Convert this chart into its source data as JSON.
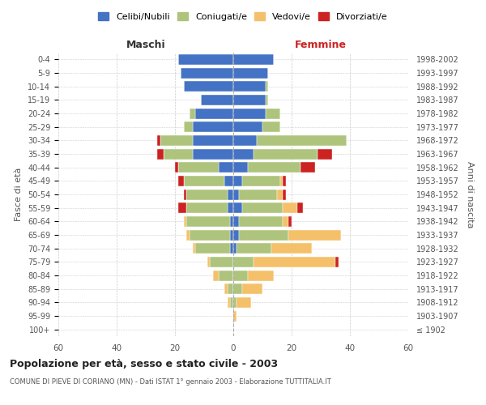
{
  "age_groups": [
    "100+",
    "95-99",
    "90-94",
    "85-89",
    "80-84",
    "75-79",
    "70-74",
    "65-69",
    "60-64",
    "55-59",
    "50-54",
    "45-49",
    "40-44",
    "35-39",
    "30-34",
    "25-29",
    "20-24",
    "15-19",
    "10-14",
    "5-9",
    "0-4"
  ],
  "birth_years": [
    "≤ 1902",
    "1903-1907",
    "1908-1912",
    "1913-1917",
    "1918-1922",
    "1923-1927",
    "1928-1932",
    "1933-1937",
    "1938-1942",
    "1943-1947",
    "1948-1952",
    "1953-1957",
    "1958-1962",
    "1963-1967",
    "1968-1972",
    "1973-1977",
    "1978-1982",
    "1983-1987",
    "1988-1992",
    "1993-1997",
    "1998-2002"
  ],
  "maschi": {
    "celibi": [
      0,
      0,
      0,
      0,
      0,
      0,
      1,
      1,
      1,
      2,
      2,
      3,
      5,
      14,
      14,
      14,
      13,
      11,
      17,
      18,
      19
    ],
    "coniugati": [
      0,
      0,
      1,
      2,
      5,
      8,
      12,
      14,
      15,
      14,
      14,
      14,
      14,
      10,
      11,
      3,
      2,
      0,
      0,
      0,
      0
    ],
    "vedovi": [
      0,
      0,
      1,
      1,
      2,
      1,
      1,
      1,
      1,
      0,
      0,
      0,
      0,
      0,
      0,
      0,
      0,
      0,
      0,
      0,
      0
    ],
    "divorziati": [
      0,
      0,
      0,
      0,
      0,
      0,
      0,
      0,
      0,
      3,
      1,
      2,
      1,
      2,
      1,
      0,
      0,
      0,
      0,
      0,
      0
    ]
  },
  "femmine": {
    "nubili": [
      0,
      0,
      0,
      0,
      0,
      0,
      1,
      2,
      2,
      3,
      2,
      3,
      5,
      7,
      8,
      10,
      11,
      11,
      11,
      12,
      14
    ],
    "coniugate": [
      0,
      0,
      1,
      3,
      5,
      7,
      12,
      17,
      15,
      14,
      13,
      13,
      18,
      22,
      31,
      6,
      5,
      1,
      1,
      0,
      0
    ],
    "vedove": [
      0,
      1,
      5,
      7,
      9,
      28,
      14,
      18,
      2,
      5,
      2,
      1,
      0,
      0,
      0,
      0,
      0,
      0,
      0,
      0,
      0
    ],
    "divorziate": [
      0,
      0,
      0,
      0,
      0,
      1,
      0,
      0,
      1,
      2,
      1,
      1,
      5,
      5,
      0,
      0,
      0,
      0,
      0,
      0,
      0
    ]
  },
  "colors": {
    "celibi": "#4472c4",
    "coniugati": "#aec47c",
    "vedovi": "#f5c06a",
    "divorziati": "#cc2222"
  },
  "xlim": 60,
  "title": "Popolazione per età, sesso e stato civile - 2003",
  "subtitle": "COMUNE DI PIEVE DI CORIANO (MN) - Dati ISTAT 1° gennaio 2003 - Elaborazione TUTTITALIA.IT",
  "ylabel_left": "Fasce di età",
  "ylabel_right": "Anni di nascita",
  "xlabel_maschi": "Maschi",
  "xlabel_femmine": "Femmine",
  "legend_labels": [
    "Celibi/Nubili",
    "Coniugati/e",
    "Vedovi/e",
    "Divorziati/e"
  ],
  "background_color": "#ffffff",
  "grid_color": "#cccccc"
}
